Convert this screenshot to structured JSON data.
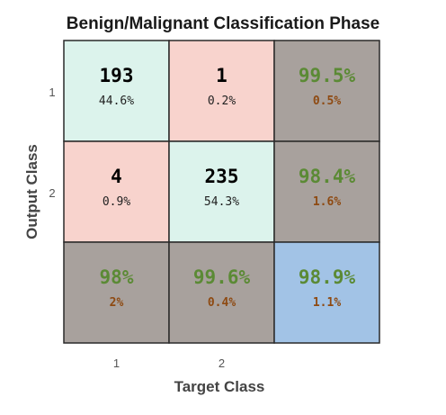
{
  "chart_data": {
    "type": "heatmap",
    "title": "Benign/Malignant Classification Phase",
    "xlabel": "Target Class",
    "ylabel": "Output Class",
    "x_ticks": [
      "1",
      "2"
    ],
    "y_ticks": [
      "1",
      "2"
    ],
    "cells": [
      [
        {
          "value": "193",
          "pct": "44.6%"
        },
        {
          "value": "1",
          "pct": "0.2%"
        },
        {
          "value": "99.5%",
          "pct": "0.5%"
        }
      ],
      [
        {
          "value": "4",
          "pct": "0.9%"
        },
        {
          "value": "235",
          "pct": "54.3%"
        },
        {
          "value": "98.4%",
          "pct": "1.6%"
        }
      ],
      [
        {
          "value": "98%",
          "pct": "2%"
        },
        {
          "value": "99.6%",
          "pct": "0.4%"
        },
        {
          "value": "98.9%",
          "pct": "1.1%"
        }
      ]
    ],
    "colors": {
      "correct": "#dcf3ec",
      "incorrect": "#f8d3cd",
      "summary": "#a8a19d",
      "overall": "#a2c3e6",
      "count_text": "#000000",
      "summary_good_text": "#5b8a35",
      "summary_bad_text": "#8e4a12"
    }
  }
}
